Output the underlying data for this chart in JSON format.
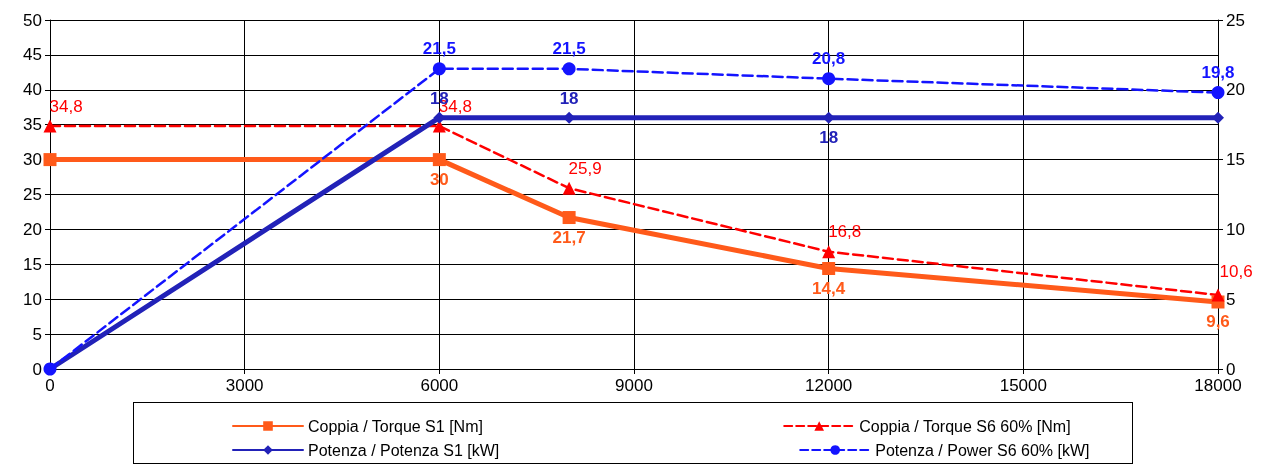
{
  "chart_data": {
    "type": "line",
    "x": [
      0,
      6000,
      8000,
      12000,
      18000
    ],
    "series": [
      {
        "name": "Coppia / Torque S1 [Nm]",
        "color": "#ff5a1a",
        "values": [
          30,
          30,
          21.7,
          14.4,
          9.6
        ],
        "value_labels": [
          null,
          "30",
          "21,7",
          "14,4",
          "9,6"
        ],
        "marker": "square",
        "line_style": "solid"
      },
      {
        "name": "Coppia / Torque S6 60% [Nm]",
        "color": "#ff0000",
        "values": [
          34.8,
          34.8,
          25.9,
          16.8,
          10.6
        ],
        "value_labels": [
          "34,8",
          "34,8",
          "25,9",
          "16,8",
          "10,6"
        ],
        "marker": "triangle",
        "line_style": "dashed"
      },
      {
        "name": "Potenza / Potenza S1 [kW]",
        "color": "#2222b8",
        "values": [
          0,
          18,
          18,
          18,
          18
        ],
        "value_labels": [
          null,
          "18",
          "18",
          "18",
          null
        ],
        "marker": "diamond",
        "line_style": "solid",
        "axis": "y2"
      },
      {
        "name": "Potenza / Power S6 60% [kW]",
        "color": "#1414ff",
        "values": [
          0,
          21.5,
          21.5,
          20.8,
          19.8
        ],
        "value_labels": [
          null,
          "21,5",
          "21,5",
          "20,8",
          "19,8"
        ],
        "marker": "circle",
        "line_style": "dashed",
        "axis": "y2"
      }
    ],
    "xlim": [
      0,
      18000
    ],
    "xticks": [
      0,
      3000,
      6000,
      9000,
      12000,
      15000,
      18000
    ],
    "ylim": [
      0,
      50
    ],
    "yticks": [
      0,
      5,
      10,
      15,
      20,
      25,
      30,
      35,
      40,
      45,
      50
    ],
    "y2lim": [
      0,
      25
    ],
    "y2ticks": [
      0,
      5,
      10,
      15,
      20,
      25
    ],
    "grid": true,
    "legend": "bottom"
  }
}
